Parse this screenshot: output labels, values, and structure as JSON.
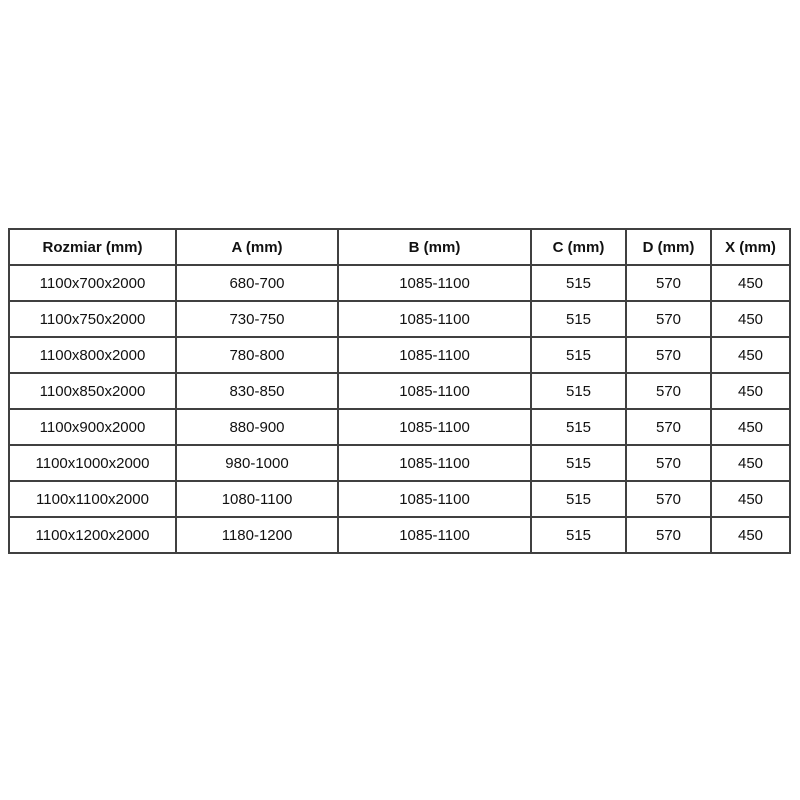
{
  "page": {
    "background_color": "#ffffff",
    "border_color": "#404040",
    "text_color": "#111111"
  },
  "table": {
    "headers": [
      "Rozmiar (mm)",
      "A (mm)",
      "B (mm)",
      "C (mm)",
      "D (mm)",
      "X (mm)"
    ],
    "rows": [
      [
        "1100x700x2000",
        "680-700",
        "1085-1100",
        "515",
        "570",
        "450"
      ],
      [
        "1100x750x2000",
        "730-750",
        "1085-1100",
        "515",
        "570",
        "450"
      ],
      [
        "1100x800x2000",
        "780-800",
        "1085-1100",
        "515",
        "570",
        "450"
      ],
      [
        "1100x850x2000",
        "830-850",
        "1085-1100",
        "515",
        "570",
        "450"
      ],
      [
        "1100x900x2000",
        "880-900",
        "1085-1100",
        "515",
        "570",
        "450"
      ],
      [
        "1100x1000x2000",
        "980-1000",
        "1085-1100",
        "515",
        "570",
        "450"
      ],
      [
        "1100x1100x2000",
        "1080-1100",
        "1085-1100",
        "515",
        "570",
        "450"
      ],
      [
        "1100x1200x2000",
        "1180-1200",
        "1085-1100",
        "515",
        "570",
        "450"
      ]
    ]
  },
  "chart_data": {
    "type": "table",
    "columns": [
      "Rozmiar (mm)",
      "A (mm)",
      "B (mm)",
      "C (mm)",
      "D (mm)",
      "X (mm)"
    ],
    "rows": [
      [
        "1100x700x2000",
        "680-700",
        "1085-1100",
        "515",
        "570",
        "450"
      ],
      [
        "1100x750x2000",
        "730-750",
        "1085-1100",
        "515",
        "570",
        "450"
      ],
      [
        "1100x800x2000",
        "780-800",
        "1085-1100",
        "515",
        "570",
        "450"
      ],
      [
        "1100x850x2000",
        "830-850",
        "1085-1100",
        "515",
        "570",
        "450"
      ],
      [
        "1100x900x2000",
        "880-900",
        "1085-1100",
        "515",
        "570",
        "450"
      ],
      [
        "1100x1000x2000",
        "980-1000",
        "1085-1100",
        "515",
        "570",
        "450"
      ],
      [
        "1100x1100x2000",
        "1080-1100",
        "1085-1100",
        "515",
        "570",
        "450"
      ],
      [
        "1100x1200x2000",
        "1180-1200",
        "1085-1100",
        "515",
        "570",
        "450"
      ]
    ],
    "title": "",
    "notes": "Dimension specification table; all borders shown, centered text, bold header row"
  }
}
